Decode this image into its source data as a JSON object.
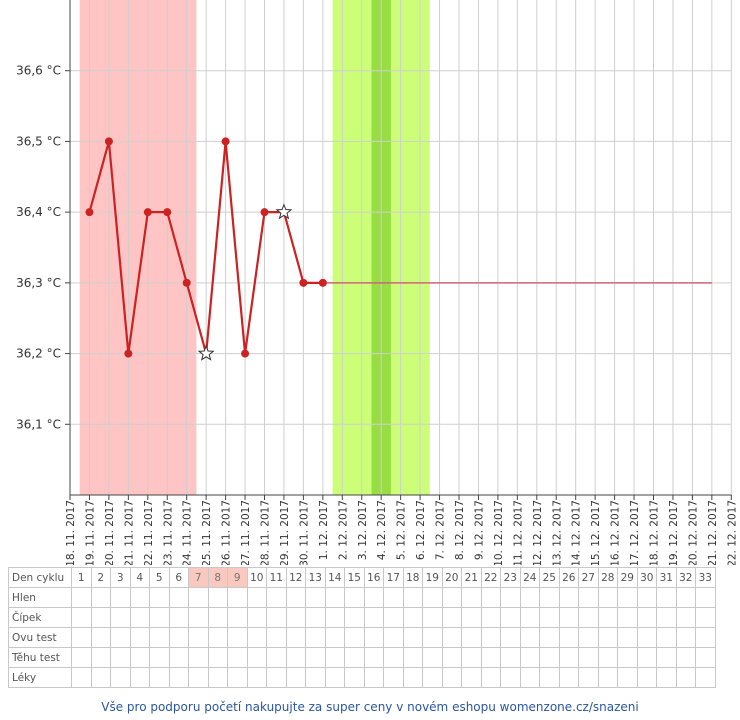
{
  "chart_data": {
    "type": "line",
    "ylim": [
      36.0,
      36.7
    ],
    "y_ticks": [
      {
        "value": 36.1,
        "label": "36,1 °C"
      },
      {
        "value": 36.2,
        "label": "36,2 °C"
      },
      {
        "value": 36.3,
        "label": "36,3 °C"
      },
      {
        "value": 36.4,
        "label": "36,4 °C"
      },
      {
        "value": 36.5,
        "label": "36,5 °C"
      },
      {
        "value": 36.6,
        "label": "36,6 °C"
      }
    ],
    "x_dates": [
      "18. 11. 2017",
      "19. 11. 2017",
      "20. 11. 2017",
      "21. 11. 2017",
      "22. 11. 2017",
      "23. 11. 2017",
      "24. 11. 2017",
      "25. 11. 2017",
      "26. 11. 2017",
      "27. 11. 2017",
      "28. 11. 2017",
      "29. 11. 2017",
      "30. 11. 2017",
      "1. 12. 2017",
      "2. 12. 2017",
      "3. 12. 2017",
      "4. 12. 2017",
      "5. 12. 2017",
      "6. 12. 2017",
      "7. 12. 2017",
      "8. 12. 2017",
      "9. 12. 2017",
      "10. 12. 2017",
      "11. 12. 2017",
      "12. 12. 2017",
      "13. 12. 2017",
      "14. 12. 2017",
      "15. 12. 2017",
      "16. 12. 2017",
      "17. 12. 2017",
      "18. 12. 2017",
      "19. 12. 2017",
      "20. 12. 2017",
      "21. 12. 2017",
      "22. 12. 2017"
    ],
    "series": [
      {
        "color": "#cc2222",
        "points": [
          {
            "x": "19. 11. 2017",
            "y": 36.4,
            "marker": "dot"
          },
          {
            "x": "20. 11. 2017",
            "y": 36.5,
            "marker": "dot"
          },
          {
            "x": "21. 11. 2017",
            "y": 36.2,
            "marker": "dot"
          },
          {
            "x": "22. 11. 2017",
            "y": 36.4,
            "marker": "dot"
          },
          {
            "x": "23. 11. 2017",
            "y": 36.4,
            "marker": "dot"
          },
          {
            "x": "24. 11. 2017",
            "y": 36.3,
            "marker": "dot"
          },
          {
            "x": "25. 11. 2017",
            "y": 36.2,
            "marker": "star"
          },
          {
            "x": "26. 11. 2017",
            "y": 36.5,
            "marker": "dot"
          },
          {
            "x": "27. 11. 2017",
            "y": 36.2,
            "marker": "dot"
          },
          {
            "x": "28. 11. 2017",
            "y": 36.4,
            "marker": "dot"
          },
          {
            "x": "29. 11. 2017",
            "y": 36.4,
            "marker": "star"
          },
          {
            "x": "30. 11. 2017",
            "y": 36.3,
            "marker": "dot"
          },
          {
            "x": "1. 12. 2017",
            "y": 36.3,
            "marker": "dot"
          }
        ]
      }
    ],
    "reference_line": {
      "y": 36.3,
      "from": "1. 12. 2017",
      "to": "21. 12. 2017",
      "color": "#cc6677"
    },
    "bands": [
      {
        "from": 0.5,
        "to": 6.5,
        "color": "#ffc4c4"
      },
      {
        "from": 13.5,
        "to": 18.5,
        "color": "#ccff77"
      },
      {
        "from": 15.5,
        "to": 16.5,
        "color": "#99dd44"
      }
    ],
    "grid": true
  },
  "table": {
    "header_label": "Den cyklu",
    "days": [
      "1",
      "2",
      "3",
      "4",
      "5",
      "6",
      "7",
      "8",
      "9",
      "10",
      "11",
      "12",
      "13",
      "14",
      "15",
      "16",
      "17",
      "18",
      "19",
      "20",
      "21",
      "22",
      "23",
      "24",
      "25",
      "26",
      "27",
      "28",
      "29",
      "30",
      "31",
      "32",
      "33"
    ],
    "highlighted_days": [
      "7",
      "8",
      "9"
    ],
    "highlight_color": "#f9c9c0",
    "rows": [
      "Hlen",
      "Čípek",
      "Ovu test",
      "Těhu test",
      "Léky"
    ]
  },
  "footer": {
    "text": "Vše pro podporu početí nakupujte za super ceny v novém eshopu womenzone.cz/snazeni",
    "color": "#2b56a0"
  }
}
